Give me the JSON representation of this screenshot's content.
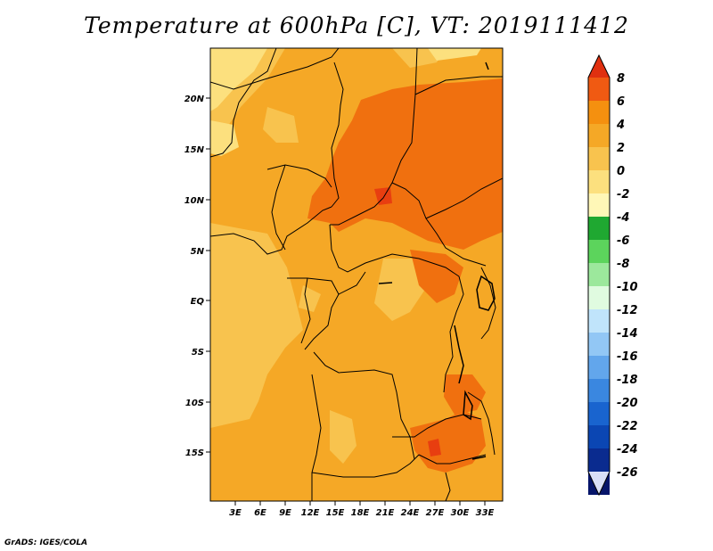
{
  "title": "Temperature at 600hPa [C], VT: 2019111412",
  "credit": "GrADS: IGES/COLA",
  "map": {
    "region": "Central Africa",
    "lon_range": [
      0,
      36
    ],
    "lat_range": [
      -20,
      25
    ],
    "lat_ticks": [
      "20N",
      "15N",
      "10N",
      "5N",
      "EQ",
      "5S",
      "10S",
      "15S"
    ],
    "lon_ticks": [
      "3E",
      "6E",
      "9E",
      "12E",
      "15E",
      "18E",
      "21E",
      "24E",
      "27E",
      "30E",
      "33E"
    ]
  },
  "colorbar": {
    "labels": [
      "8",
      "6",
      "4",
      "2",
      "0",
      "-2",
      "-4",
      "-6",
      "-8",
      "-10",
      "-12",
      "-14",
      "-16",
      "-18",
      "-20",
      "-22",
      "-24",
      "-26"
    ],
    "colors": [
      "#e03010",
      "#f05a12",
      "#f5900f",
      "#f5a826",
      "#f8c34e",
      "#fce07e",
      "#fff7b7",
      "#1fa831",
      "#5cd45c",
      "#9ce89c",
      "#e0fbe0",
      "#c0e4fb",
      "#92c7f5",
      "#62a6ec",
      "#3a87e0",
      "#1964cf",
      "#0b46b3",
      "#0a2b8f",
      "#06156a",
      "#d9dff7"
    ]
  }
}
